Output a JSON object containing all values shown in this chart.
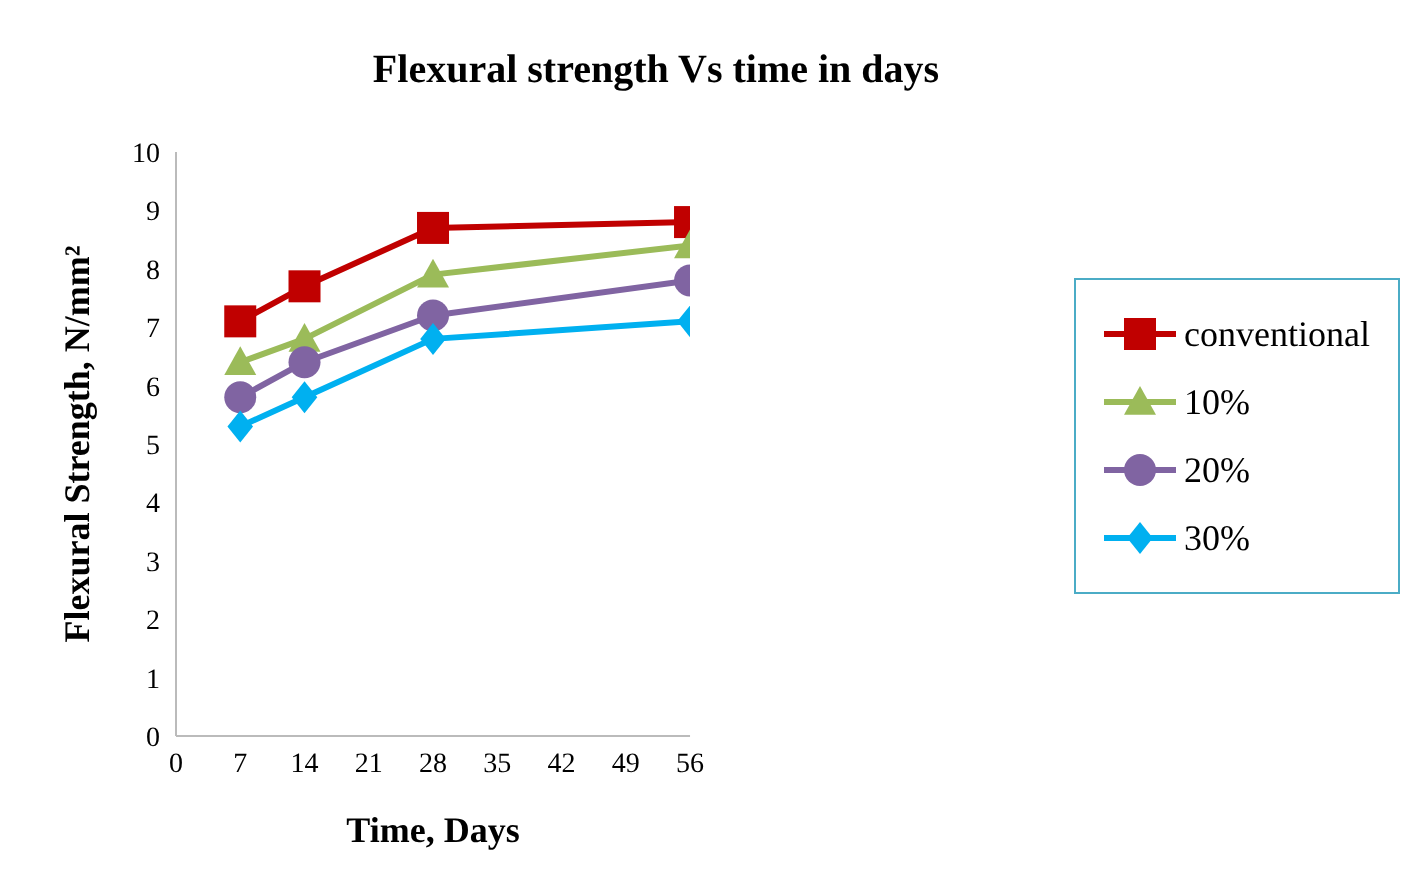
{
  "chart_data": {
    "type": "line",
    "title": "Flexural strength Vs time in days",
    "xlabel": "Time, Days",
    "ylabel": "Flexural Strength, N/mm²",
    "x": [
      7,
      14,
      28,
      56
    ],
    "series": [
      {
        "name": "conventional",
        "color": "#c00000",
        "marker": "square",
        "values": [
          7.1,
          7.7,
          8.7,
          8.8
        ]
      },
      {
        "name": "10%",
        "color": "#9bbb59",
        "marker": "triangle",
        "values": [
          6.4,
          6.8,
          7.9,
          8.4
        ]
      },
      {
        "name": "20%",
        "color": "#8064a2",
        "marker": "circle",
        "values": [
          5.8,
          6.4,
          7.2,
          7.8
        ]
      },
      {
        "name": "30%",
        "color": "#00b0f0",
        "marker": "diamond",
        "values": [
          5.3,
          5.8,
          6.8,
          7.1
        ]
      }
    ],
    "xlim": [
      0,
      56
    ],
    "xticks": [
      0,
      7,
      14,
      21,
      28,
      35,
      42,
      49,
      56
    ],
    "ylim": [
      0,
      10
    ],
    "yticks": [
      0,
      1,
      2,
      3,
      4,
      5,
      6,
      7,
      8,
      9,
      10
    ],
    "grid": false,
    "legend": "right"
  }
}
